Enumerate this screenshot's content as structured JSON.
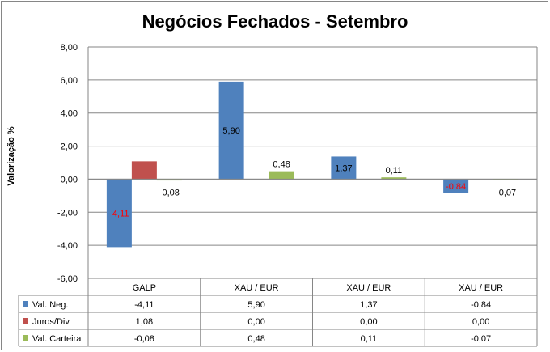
{
  "chart_data": {
    "type": "bar",
    "title": "Negócios Fechados - Setembro",
    "ylabel": "Valorização %",
    "xlabel": "",
    "ylim": [
      -6,
      8
    ],
    "yticks": [
      "-6,00",
      "-4,00",
      "-2,00",
      "0,00",
      "2,00",
      "4,00",
      "6,00",
      "8,00"
    ],
    "grid": true,
    "legend": "data-table",
    "categories": [
      "GALP",
      "XAU / EUR",
      "XAU / EUR",
      "XAU / EUR"
    ],
    "series": [
      {
        "name": "Val. Neg.",
        "color": "#4F81BD",
        "values": [
          -4.11,
          5.9,
          1.37,
          -0.84
        ],
        "table_values": [
          "-4,11",
          "5,90",
          "1,37",
          "-0,84"
        ],
        "data_labels": [
          "-4,11",
          "5,90",
          "1,37",
          "-0,84"
        ]
      },
      {
        "name": "Juros/Div",
        "color": "#C0504D",
        "values": [
          1.08,
          0.0,
          0.0,
          0.0
        ],
        "table_values": [
          "1,08",
          "0,00",
          "0,00",
          "0,00"
        ],
        "data_labels": [
          "",
          "",
          "",
          ""
        ]
      },
      {
        "name": "Val. Carteira",
        "color": "#9BBB59",
        "values": [
          -0.08,
          0.48,
          0.11,
          -0.07
        ],
        "table_values": [
          "-0,08",
          "0,48",
          "0,11",
          "-0,07"
        ],
        "data_labels": [
          "-0,08",
          "0,48",
          "0,11",
          "-0,07"
        ]
      }
    ],
    "negative_label_color": "#FF0000"
  }
}
